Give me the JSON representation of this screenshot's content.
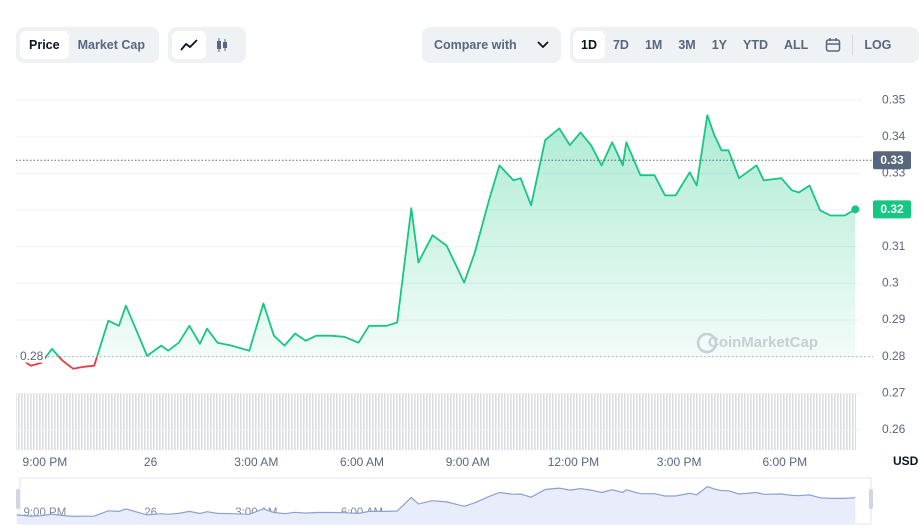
{
  "toolbar": {
    "tabs": [
      "Price",
      "Market Cap"
    ],
    "compare": "Compare with",
    "ranges": [
      "1D",
      "7D",
      "1M",
      "3M",
      "1Y",
      "YTD",
      "ALL"
    ],
    "log": "LOG"
  },
  "chart_data": {
    "type": "line",
    "x": [
      20.2,
      20.6,
      20.9,
      21.2,
      21.5,
      21.8,
      22.1,
      22.4,
      22.8,
      23.1,
      23.3,
      23.6,
      23.9,
      24.3,
      24.5,
      24.8,
      25.1,
      25.4,
      25.6,
      25.9,
      26.3,
      26.8,
      27.2,
      27.5,
      27.8,
      28.1,
      28.4,
      28.7,
      29.1,
      29.5,
      29.9,
      30.2,
      30.7,
      31.0,
      31.4,
      31.6,
      32.0,
      32.4,
      32.9,
      33.2,
      33.6,
      33.9,
      34.3,
      34.5,
      34.8,
      35.2,
      35.6,
      35.9,
      36.2,
      36.5,
      36.8,
      37.1,
      37.4,
      37.5,
      37.9,
      38.3,
      38.6,
      38.9,
      39.3,
      39.5,
      39.8,
      40.0,
      40.2,
      40.4,
      40.7,
      41.2,
      41.4,
      41.9,
      42.2,
      42.4,
      42.7,
      43.0,
      43.3,
      43.7,
      44.0
    ],
    "series": [
      {
        "color": "#16c784",
        "negative_color": "#ea3943",
        "values": [
          0.2802,
          0.2775,
          0.2783,
          0.2821,
          0.2789,
          0.2767,
          0.2772,
          0.2775,
          0.2898,
          0.2884,
          0.2939,
          0.2871,
          0.2802,
          0.283,
          0.2816,
          0.2838,
          0.2884,
          0.2835,
          0.2876,
          0.2838,
          0.283,
          0.2816,
          0.2945,
          0.2857,
          0.283,
          0.2863,
          0.2843,
          0.2857,
          0.2857,
          0.2854,
          0.2838,
          0.2884,
          0.2884,
          0.2893,
          0.3205,
          0.3057,
          0.3131,
          0.3103,
          0.3002,
          0.3084,
          0.3226,
          0.3322,
          0.3281,
          0.3287,
          0.3213,
          0.3391,
          0.3423,
          0.3377,
          0.3412,
          0.3377,
          0.3322,
          0.3385,
          0.3322,
          0.3385,
          0.3295,
          0.3295,
          0.324,
          0.324,
          0.3303,
          0.3267,
          0.3459,
          0.3404,
          0.3363,
          0.3363,
          0.3287,
          0.3322,
          0.3281,
          0.3287,
          0.3254,
          0.3248,
          0.3267,
          0.3199,
          0.3185,
          0.3185,
          0.3202
        ]
      }
    ],
    "xlim": [
      20.18,
      44.19
    ],
    "xticks": [
      {
        "value": 21,
        "label": "9:00 PM"
      },
      {
        "value": 24,
        "label": "26"
      },
      {
        "value": 27,
        "label": "3:00 AM"
      },
      {
        "value": 30,
        "label": "6:00 AM"
      },
      {
        "value": 33,
        "label": "9:00 AM"
      },
      {
        "value": 36,
        "label": "12:00 PM"
      },
      {
        "value": 39,
        "label": "3:00 PM"
      },
      {
        "value": 42,
        "label": "6:00 PM"
      }
    ],
    "ylim": [
      0.2545,
      0.3555
    ],
    "yticks": [
      0.26,
      0.27,
      0.28,
      0.29,
      0.3,
      0.31,
      0.32,
      0.33,
      0.34,
      0.35
    ],
    "grid": true,
    "baseline": 0.28,
    "price_tags": [
      {
        "value": 0.3336,
        "label": "0.33",
        "color": "#58667e"
      },
      {
        "value": 0.3202,
        "label": "0.32",
        "color": "#16c784"
      }
    ],
    "currency": "USD",
    "watermark": "CoinMarketCap"
  }
}
